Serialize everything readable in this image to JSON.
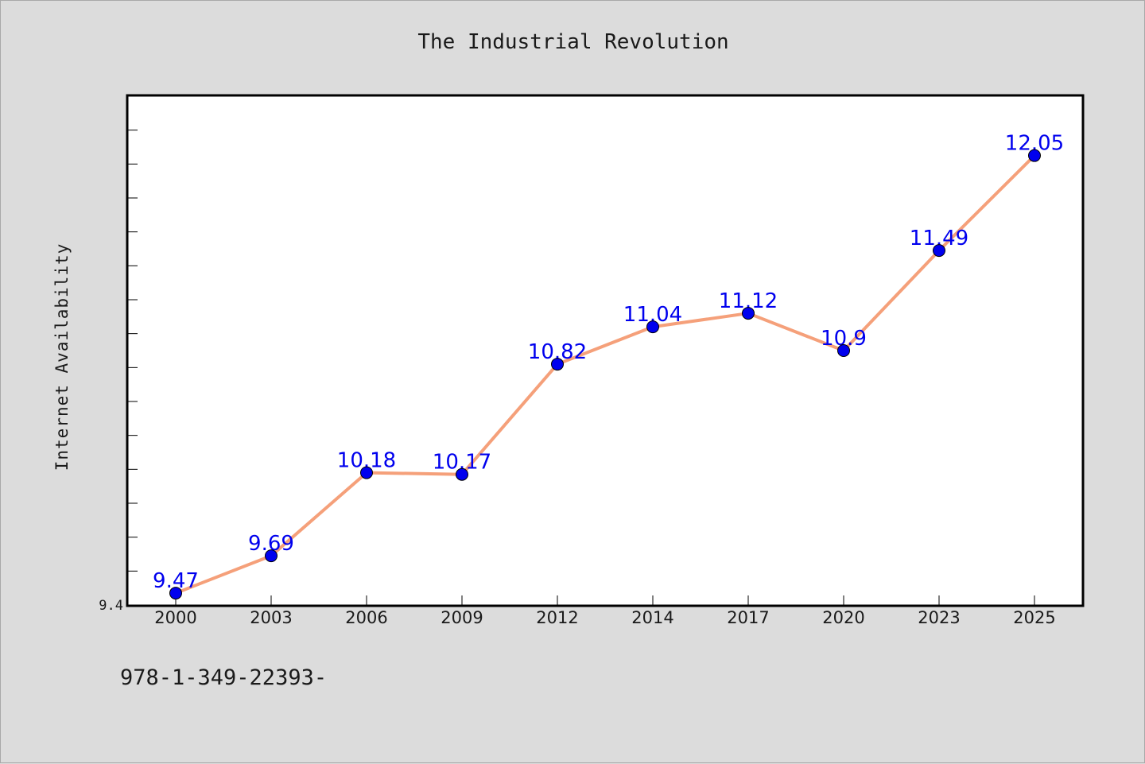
{
  "chart_data": {
    "type": "line",
    "title": "The Industrial Revolution",
    "xlabel": "",
    "ylabel": "Internet Availability",
    "categories": [
      "2000",
      "2003",
      "2006",
      "2009",
      "2012",
      "2014",
      "2017",
      "2020",
      "2023",
      "2025"
    ],
    "series": [
      {
        "values": [
          9.47,
          9.69,
          10.18,
          10.17,
          10.82,
          11.04,
          11.12,
          10.9,
          11.49,
          12.05
        ],
        "labels": [
          "9.47",
          "9.69",
          "10.18",
          "10.17",
          "10.82",
          "11.04",
          "11.12",
          "10.9",
          "11.49",
          "12.05"
        ],
        "line_color": "#f5a07a",
        "marker_color": "#0000ee",
        "label_color": "#0000ee"
      }
    ],
    "ylim": [
      9.4,
      12.4
    ],
    "ytick_labels": [
      "9.4"
    ],
    "grid": false,
    "legend": "none"
  },
  "footer_text": "978-1-349-22393-"
}
